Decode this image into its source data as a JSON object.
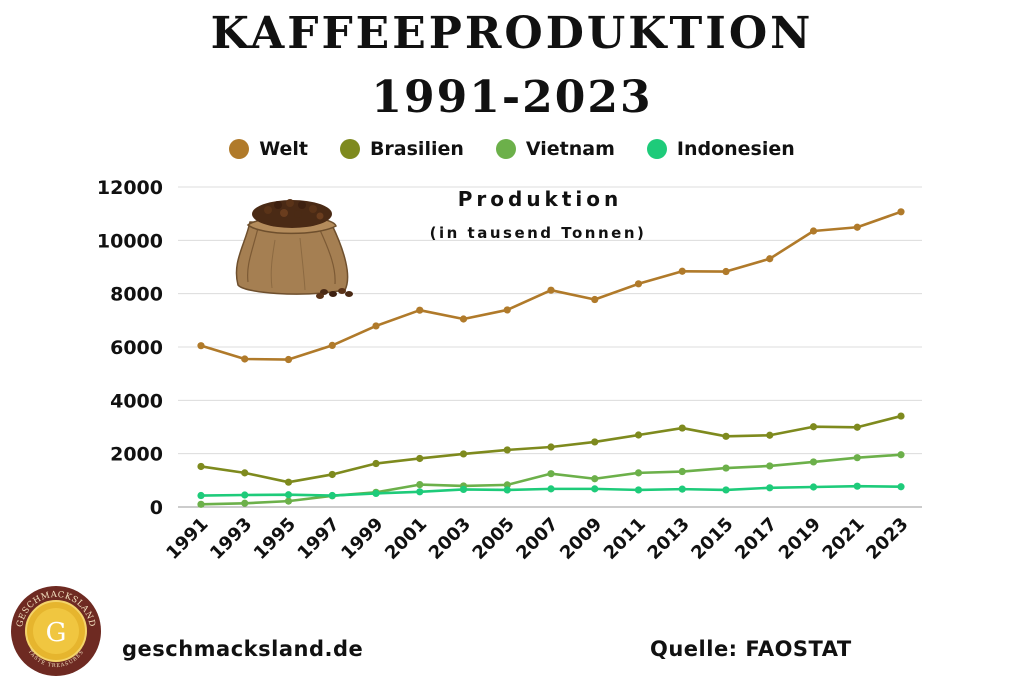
{
  "title_line1": "KAFFEEPRODUKTION",
  "title_line2": "1991-2023",
  "footer": {
    "site": "geschmacksland.de",
    "source": "Quelle: FAOSTAT",
    "logo_text_top": "GESCHMACKSLAND",
    "logo_letter": "G",
    "logo_text_bottom": "TASTE TREASURES"
  },
  "chart_data": {
    "type": "line",
    "title": "Produktion",
    "subtitle": "(in tausend Tonnen)",
    "xlabel": "",
    "ylabel": "",
    "x": [
      "1991",
      "1993",
      "1995",
      "1997",
      "1999",
      "2001",
      "2003",
      "2005",
      "2007",
      "2009",
      "2011",
      "2013",
      "2015",
      "2017",
      "2019",
      "2021",
      "2023"
    ],
    "ylim": [
      0,
      12000
    ],
    "yticks": [
      0,
      2000,
      4000,
      6000,
      8000,
      10000,
      12000
    ],
    "grid": true,
    "legend_position": "top",
    "series": [
      {
        "name": "Welt",
        "color": "#b07a2a",
        "values": [
          6050,
          5550,
          5530,
          6060,
          6790,
          7380,
          7050,
          7390,
          8130,
          7780,
          8370,
          8840,
          8830,
          9310,
          10350,
          10490,
          11070
        ]
      },
      {
        "name": "Brasilien",
        "color": "#7e8a1e",
        "values": [
          1520,
          1280,
          930,
          1220,
          1630,
          1820,
          1990,
          2140,
          2250,
          2440,
          2700,
          2960,
          2650,
          2690,
          3010,
          2990,
          3410
        ]
      },
      {
        "name": "Vietnam",
        "color": "#6cb04a",
        "values": [
          100,
          140,
          220,
          420,
          550,
          840,
          790,
          830,
          1250,
          1060,
          1280,
          1330,
          1460,
          1540,
          1690,
          1850,
          1960
        ]
      },
      {
        "name": "Indonesien",
        "color": "#1ecb7a",
        "values": [
          430,
          450,
          460,
          430,
          510,
          570,
          660,
          640,
          680,
          680,
          640,
          670,
          640,
          720,
          750,
          780,
          760
        ]
      }
    ]
  }
}
